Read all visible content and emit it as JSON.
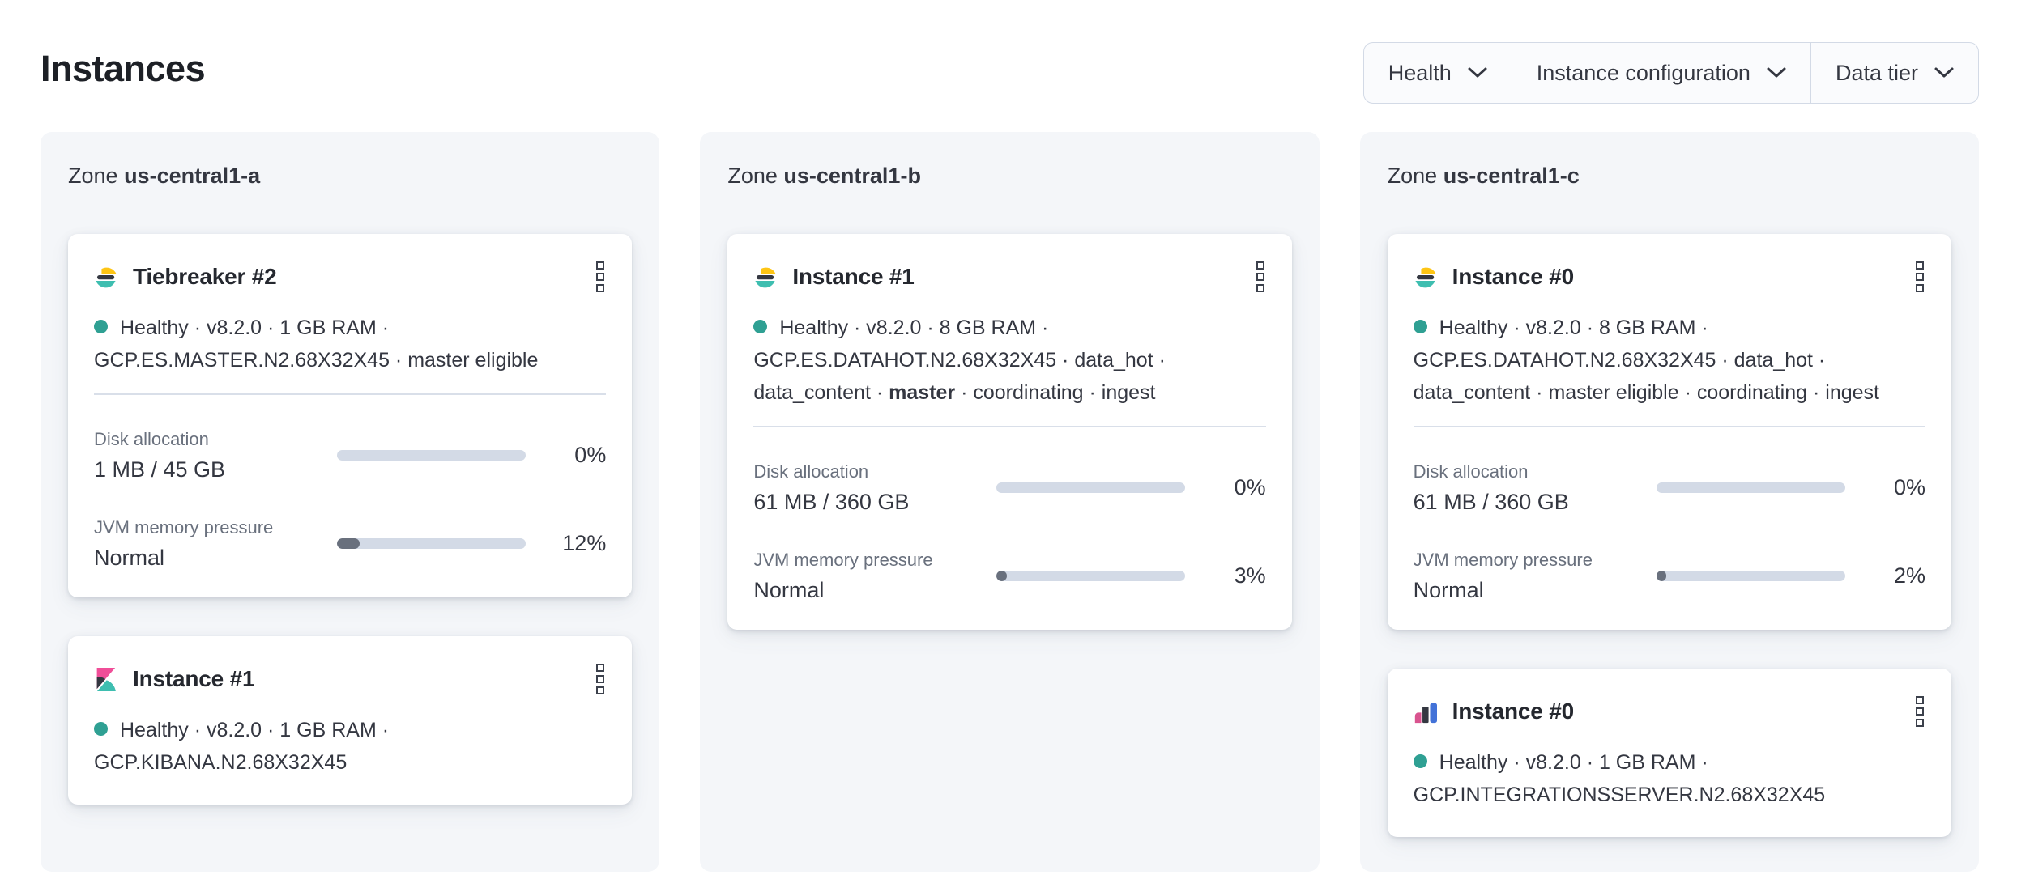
{
  "page": {
    "title": "Instances"
  },
  "filters": [
    {
      "label": "Health"
    },
    {
      "label": "Instance configuration"
    },
    {
      "label": "Data tier"
    }
  ],
  "colors": {
    "health_dot": "#2fa093",
    "bar_track": "#d3dae6",
    "bar_fill": "#69707d",
    "elasticsearch_yellow": "#fec514",
    "elasticsearch_dark": "#343741",
    "elasticsearch_teal": "#3ebeb0",
    "kibana_pink": "#f04e98",
    "integrations_pink": "#d9548f",
    "integrations_blue": "#4272d8",
    "zone_panel_bg": "#f4f6f9"
  },
  "zones": [
    {
      "label_prefix": "Zone",
      "name": "us-central1-a",
      "cards": [
        {
          "title": "Tiebreaker #2",
          "health": "Healthy",
          "meta_pre": " · v8.2.0 · 1 GB RAM ·\nGCP.ES.MASTER.N2.68X32X45 · master eligible",
          "meta_bold": "",
          "meta_post": "",
          "metrics": [
            {
              "label": "Disk allocation",
              "value": "1 MB / 45 GB",
              "percent": 0,
              "percent_label": "0%"
            },
            {
              "label": "JVM memory pressure",
              "value": "Normal",
              "percent": 12,
              "percent_label": "12%"
            }
          ]
        },
        {
          "title": "Instance #1",
          "health": "Healthy",
          "meta_pre": " · v8.2.0 · 1 GB RAM ·\nGCP.KIBANA.N2.68X32X45",
          "meta_bold": "",
          "meta_post": ""
        }
      ]
    },
    {
      "label_prefix": "Zone",
      "name": "us-central1-b",
      "cards": [
        {
          "title": "Instance #1",
          "health": "Healthy",
          "meta_pre": " · v8.2.0 · 8 GB RAM ·\nGCP.ES.DATAHOT.N2.68X32X45 · data_hot ·\ndata_content · ",
          "meta_bold": "master",
          "meta_post": " · coordinating · ingest",
          "metrics": [
            {
              "label": "Disk allocation",
              "value": "61 MB / 360 GB",
              "percent": 0,
              "percent_label": "0%"
            },
            {
              "label": "JVM memory pressure",
              "value": "Normal",
              "percent": 3,
              "percent_label": "3%"
            }
          ]
        }
      ]
    },
    {
      "label_prefix": "Zone",
      "name": "us-central1-c",
      "cards": [
        {
          "title": "Instance #0",
          "health": "Healthy",
          "meta_pre": " · v8.2.0 · 8 GB RAM ·\nGCP.ES.DATAHOT.N2.68X32X45 · data_hot ·\ndata_content · master eligible · coordinating · ingest",
          "meta_bold": "",
          "meta_post": "",
          "metrics": [
            {
              "label": "Disk allocation",
              "value": "61 MB / 360 GB",
              "percent": 0,
              "percent_label": "0%"
            },
            {
              "label": "JVM memory pressure",
              "value": "Normal",
              "percent": 2,
              "percent_label": "2%"
            }
          ]
        },
        {
          "title": "Instance #0",
          "health": "Healthy",
          "meta_pre": " · v8.2.0 · 1 GB RAM ·\nGCP.INTEGRATIONSSERVER.N2.68X32X45",
          "meta_bold": "",
          "meta_post": ""
        }
      ]
    }
  ]
}
